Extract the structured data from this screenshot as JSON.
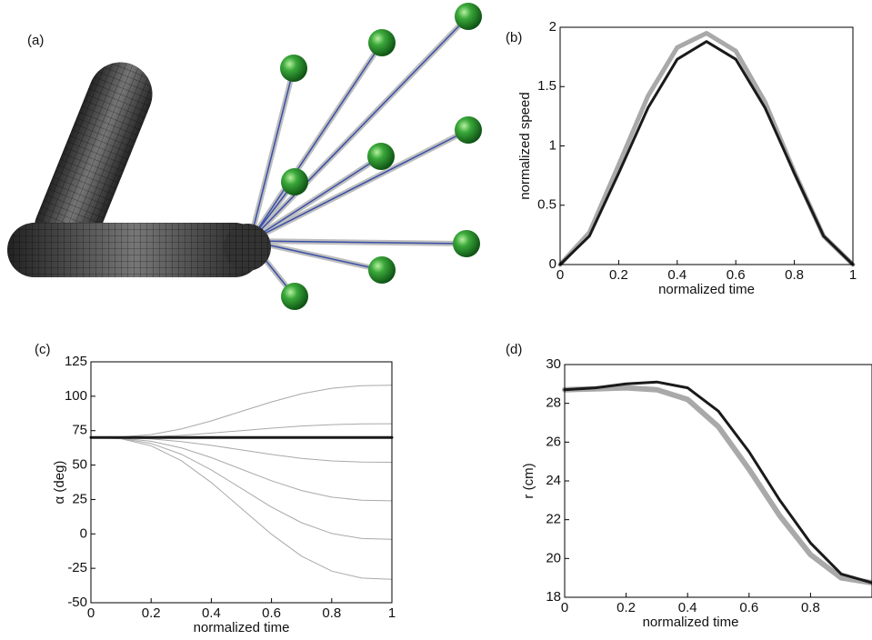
{
  "illustration": {
    "label": "(a)"
  },
  "chart_data": [
    {
      "type": "line",
      "label": "(b)",
      "xlabel": "normalized time",
      "ylabel": "normalized speed",
      "x": [
        0,
        0.1,
        0.2,
        0.3,
        0.4,
        0.5,
        0.6,
        0.7,
        0.8,
        0.9,
        1
      ],
      "series": [
        {
          "color": "#a9a9a9",
          "values": [
            0,
            0.27,
            0.84,
            1.42,
            1.83,
            1.95,
            1.8,
            1.37,
            0.78,
            0.24,
            0
          ]
        },
        {
          "color": "#1a1a1a",
          "values": [
            0,
            0.24,
            0.77,
            1.32,
            1.73,
            1.88,
            1.73,
            1.32,
            0.77,
            0.24,
            0
          ]
        }
      ],
      "xlim": [
        0,
        1
      ],
      "ylim": [
        0,
        2
      ],
      "xticks": [
        0,
        0.2,
        0.4,
        0.6,
        0.8,
        1
      ],
      "yticks": [
        0,
        0.5,
        1,
        1.5,
        2
      ]
    },
    {
      "type": "line",
      "label": "(c)",
      "xlabel": "normalized time",
      "ylabel": "α (deg)",
      "x": [
        0,
        0.1,
        0.2,
        0.3,
        0.4,
        0.5,
        0.6,
        0.7,
        0.8,
        0.9,
        1
      ],
      "series": [
        {
          "color": "#a9a9a9",
          "values": [
            70,
            70.3,
            72.2,
            76.2,
            82.1,
            89,
            95.9,
            101.8,
            105.8,
            107.7,
            108
          ]
        },
        {
          "color": "#a9a9a9",
          "values": [
            70,
            70.1,
            70.6,
            71.6,
            73.2,
            75,
            76.8,
            78.4,
            79.4,
            79.9,
            80
          ]
        },
        {
          "color": "#a9a9a9",
          "values": [
            70,
            69.8,
            69,
            67.1,
            64.3,
            61,
            57.7,
            54.9,
            53,
            52.2,
            52
          ]
        },
        {
          "color": "#a9a9a9",
          "values": [
            70,
            69.6,
            67.3,
            62.5,
            55.4,
            47,
            38.6,
            31.5,
            26.7,
            24.4,
            24
          ]
        },
        {
          "color": "#a9a9a9",
          "values": [
            70,
            69.4,
            65.7,
            57.9,
            46.5,
            33,
            19.5,
            8.1,
            0.3,
            -3.4,
            -4
          ]
        },
        {
          "color": "#a9a9a9",
          "values": [
            70,
            69.1,
            64,
            53.2,
            37.3,
            18.5,
            -0.3,
            -16.2,
            -27,
            -32.1,
            -33
          ]
        },
        {
          "color": "#1a1a1a",
          "values": [
            70,
            70,
            70,
            70,
            70,
            70,
            70,
            70,
            70,
            70,
            70
          ]
        }
      ],
      "xlim": [
        0,
        1
      ],
      "ylim": [
        -50,
        125
      ],
      "xticks": [
        0,
        0.2,
        0.4,
        0.6,
        0.8,
        1
      ],
      "yticks": [
        -50,
        -25,
        0,
        25,
        50,
        75,
        100,
        125
      ]
    },
    {
      "type": "line",
      "label": "(d)",
      "xlabel": "normalized time",
      "ylabel": "r (cm)",
      "x": [
        0,
        0.1,
        0.2,
        0.3,
        0.4,
        0.5,
        0.6,
        0.7,
        0.8,
        0.9,
        1
      ],
      "series": [
        {
          "color": "#a9a9a9",
          "values": [
            28.7,
            28.75,
            28.8,
            28.7,
            28.2,
            26.8,
            24.6,
            22.2,
            20.2,
            19,
            18.75
          ]
        },
        {
          "color": "#1a1a1a",
          "values": [
            28.7,
            28.8,
            29,
            29.1,
            28.8,
            27.6,
            25.5,
            23,
            20.8,
            19.2,
            18.75
          ]
        }
      ],
      "xlim": [
        0,
        1
      ],
      "ylim": [
        18,
        30
      ],
      "xticks": [
        0,
        0.2,
        0.4,
        0.6,
        0.8
      ],
      "yticks": [
        18,
        20,
        22,
        24,
        26,
        28,
        30
      ]
    }
  ]
}
